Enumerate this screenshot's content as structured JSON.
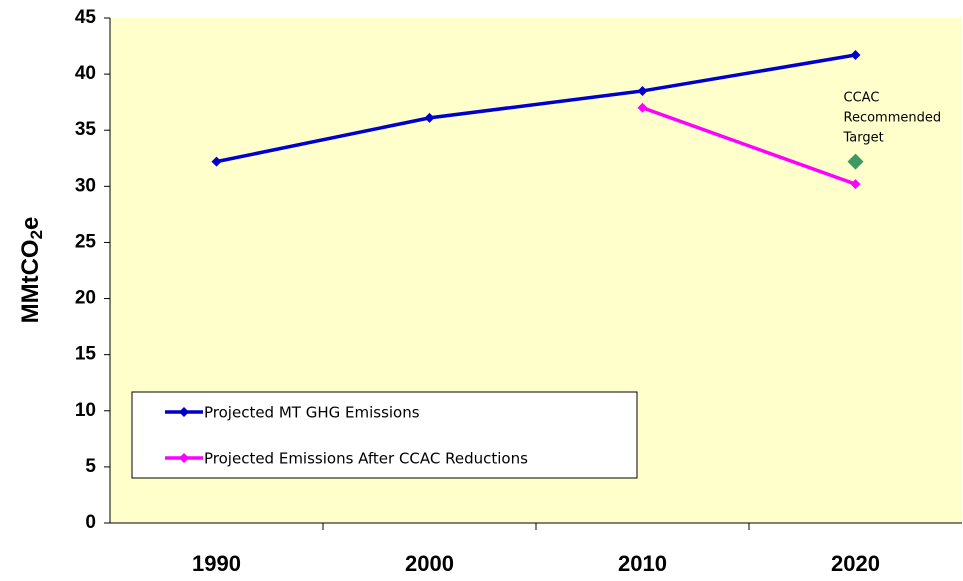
{
  "chart_data": {
    "type": "line",
    "ylabel": [
      "MMtCO",
      "2",
      "e"
    ],
    "categories": [
      "1990",
      "2000",
      "2010",
      "2020"
    ],
    "series": [
      {
        "name": "Projected MT GHG Emissions",
        "color": "#0000cc",
        "values": [
          32.2,
          36.1,
          38.5,
          41.7
        ]
      },
      {
        "name": "Projected Emissions After CCAC Reductions",
        "color": "#ff00ff",
        "values": [
          null,
          null,
          37.0,
          30.2
        ]
      }
    ],
    "target": {
      "category": "2020",
      "value": 32.2,
      "color": "#3a9a62",
      "label": [
        "CCAC",
        "Recommended",
        "Target"
      ]
    },
    "ylim": [
      0,
      45
    ],
    "yticks": [
      0,
      5,
      10,
      15,
      20,
      25,
      30,
      35,
      40,
      45
    ],
    "background": "#ffffcc"
  }
}
